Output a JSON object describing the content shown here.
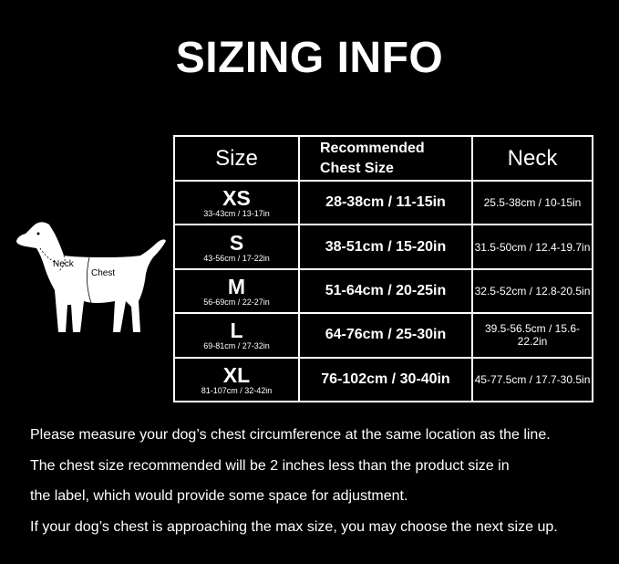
{
  "title": "SIZING INFO",
  "table": {
    "headers": {
      "size": "Size",
      "chest_line1": "Recommended",
      "chest_line2": "Chest Size",
      "neck": "Neck"
    },
    "rows": [
      {
        "size": "XS",
        "range": "33-43cm / 13-17in",
        "chest": "28-38cm / 11-15in",
        "neck": "25.5-38cm / 10-15in"
      },
      {
        "size": "S",
        "range": "43-56cm / 17-22in",
        "chest": "38-51cm / 15-20in",
        "neck": "31.5-50cm / 12.4-19.7in"
      },
      {
        "size": "M",
        "range": "56-69cm / 22-27in",
        "chest": "51-64cm / 20-25in",
        "neck": "32.5-52cm / 12.8-20.5in"
      },
      {
        "size": "L",
        "range": "69-81cm / 27-32in",
        "chest": "64-76cm / 25-30in",
        "neck": "39.5-56.5cm / 15.6-22.2in"
      },
      {
        "size": "XL",
        "range": "81-107cm / 32-42in",
        "chest": "76-102cm / 30-40in",
        "neck": "45-77.5cm / 17.7-30.5in"
      }
    ]
  },
  "dog": {
    "neck_label": "Neck",
    "chest_label": "Chest"
  },
  "notes": [
    "Please measure your dog’s chest circumference at the same location as the line.",
    "The chest size recommended will be 2 inches less than the product size in",
    "the label, which would provide some space for adjustment.",
    "If your dog’s chest is approaching the max size, you may choose the next size up."
  ]
}
